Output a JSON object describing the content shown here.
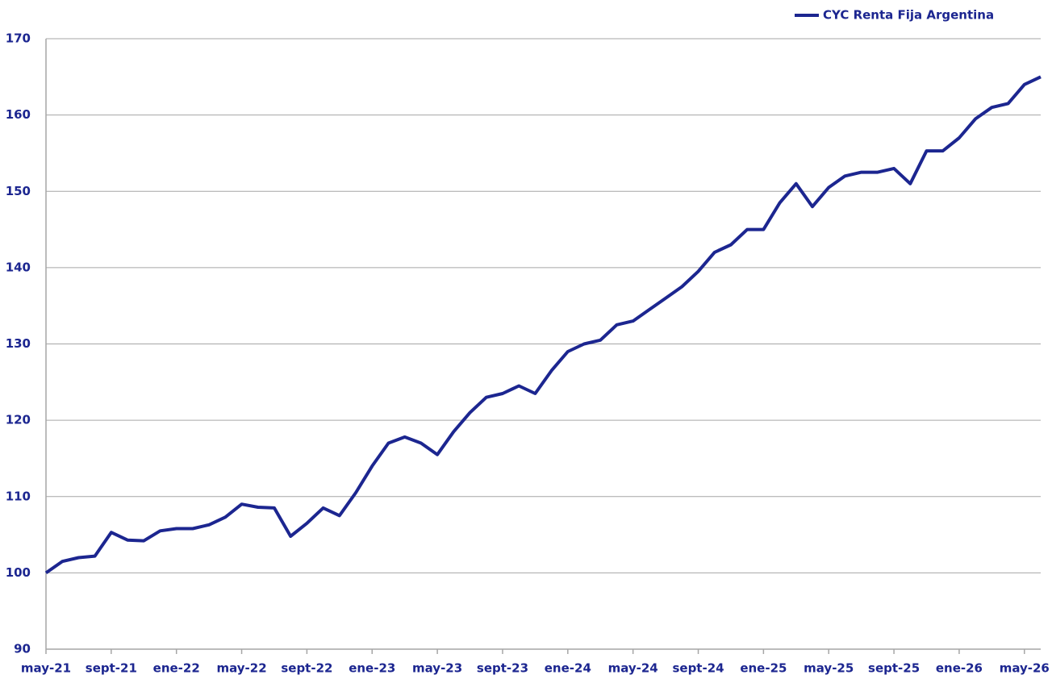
{
  "chart_data": {
    "type": "line",
    "categories": [
      "may-21",
      null,
      null,
      null,
      "sept-21",
      null,
      null,
      null,
      "ene-22",
      null,
      null,
      null,
      "may-22",
      null,
      null,
      null,
      "sept-22",
      null,
      null,
      null,
      "ene-23",
      null,
      null,
      null,
      "may-23",
      null,
      null,
      null,
      "sept-23",
      null,
      null,
      null,
      "ene-24",
      null,
      null,
      null,
      "may-24",
      null,
      null,
      null,
      "sept-24",
      null,
      null,
      null,
      "ene-25",
      null,
      null,
      null,
      "may-25",
      null,
      null,
      null,
      "sept-25",
      null,
      null,
      null,
      "ene-26",
      null,
      null,
      null,
      "may-26",
      null
    ],
    "series": [
      {
        "name": "CYC Renta Fija Argentina",
        "color": "#1c2690",
        "values": [
          100,
          101.5,
          102,
          102.2,
          105.3,
          104.3,
          104.2,
          105.5,
          105.8,
          105.8,
          106.3,
          107.3,
          109,
          108.6,
          108.5,
          104.8,
          106.5,
          108.5,
          107.5,
          110.5,
          114,
          117,
          117.8,
          117,
          115.5,
          118.5,
          121,
          123,
          123.5,
          124.5,
          123.5,
          126.5,
          129,
          130,
          130.5,
          132.5,
          133,
          134.5,
          136,
          137.5,
          139.5,
          142,
          143,
          145,
          145,
          148.5,
          151,
          148,
          150.5,
          152,
          152.5,
          152.5,
          153,
          151,
          155.3,
          155.3,
          157,
          159.5,
          161,
          161.5,
          164,
          165
        ]
      }
    ],
    "ylim": [
      90,
      170
    ],
    "yticks": [
      90,
      100,
      110,
      120,
      130,
      140,
      150,
      160,
      170
    ],
    "grid": true,
    "legend": "top-right"
  }
}
